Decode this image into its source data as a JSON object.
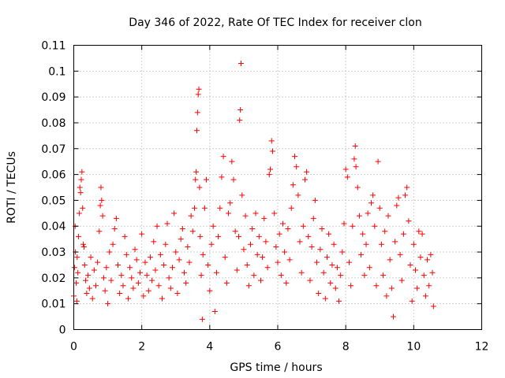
{
  "chart_data": {
    "type": "scatter",
    "title": "Day 346 of 2022, Rate Of TEC Index for receiver clon",
    "xlabel": "GPS time / hours",
    "ylabel": "ROTI / TECUs",
    "xlim": [
      0,
      12
    ],
    "ylim": [
      0,
      0.11
    ],
    "xticks": [
      "0",
      "2",
      "4",
      "6",
      "8",
      "10",
      "12"
    ],
    "xtick_values": [
      0,
      2,
      4,
      6,
      8,
      10,
      12
    ],
    "yticks": [
      "0",
      "0.01",
      "0.02",
      "0.03",
      "0.04",
      "0.05",
      "0.06",
      "0.07",
      "0.08",
      "0.09",
      "0.1",
      "0.11"
    ],
    "ytick_values": [
      0,
      0.01,
      0.02,
      0.03,
      0.04,
      0.05,
      0.06,
      0.07,
      0.08,
      0.09,
      0.1,
      0.11
    ],
    "grid": true,
    "marker": "plus",
    "color": "#ff0000",
    "series": [
      {
        "points": [
          [
            0.0,
            0.013
          ],
          [
            0.02,
            0.024
          ],
          [
            0.04,
            0.04
          ],
          [
            0.05,
            0.03
          ],
          [
            0.07,
            0.018
          ],
          [
            0.09,
            0.011
          ],
          [
            0.1,
            0.028
          ],
          [
            0.12,
            0.022
          ],
          [
            0.14,
            0.036
          ],
          [
            0.16,
            0.045
          ],
          [
            0.18,
            0.055
          ],
          [
            0.2,
            0.053
          ],
          [
            0.22,
            0.058
          ],
          [
            0.24,
            0.061
          ],
          [
            0.26,
            0.047
          ],
          [
            0.28,
            0.033
          ],
          [
            0.3,
            0.032
          ],
          [
            0.32,
            0.025
          ],
          [
            0.35,
            0.019
          ],
          [
            0.38,
            0.014
          ],
          [
            0.42,
            0.021
          ],
          [
            0.46,
            0.016
          ],
          [
            0.5,
            0.028
          ],
          [
            0.55,
            0.012
          ],
          [
            0.6,
            0.023
          ],
          [
            0.65,
            0.017
          ],
          [
            0.7,
            0.026
          ],
          [
            0.75,
            0.038
          ],
          [
            0.78,
            0.048
          ],
          [
            0.8,
            0.055
          ],
          [
            0.82,
            0.05
          ],
          [
            0.85,
            0.044
          ],
          [
            0.88,
            0.02
          ],
          [
            0.92,
            0.015
          ],
          [
            0.96,
            0.024
          ],
          [
            1.0,
            0.01
          ],
          [
            1.05,
            0.03
          ],
          [
            1.1,
            0.019
          ],
          [
            1.15,
            0.033
          ],
          [
            1.2,
            0.039
          ],
          [
            1.25,
            0.043
          ],
          [
            1.3,
            0.025
          ],
          [
            1.35,
            0.014
          ],
          [
            1.4,
            0.021
          ],
          [
            1.45,
            0.017
          ],
          [
            1.5,
            0.036
          ],
          [
            1.55,
            0.029
          ],
          [
            1.6,
            0.012
          ],
          [
            1.65,
            0.024
          ],
          [
            1.7,
            0.02
          ],
          [
            1.75,
            0.016
          ],
          [
            1.8,
            0.031
          ],
          [
            1.85,
            0.027
          ],
          [
            1.9,
            0.018
          ],
          [
            1.95,
            0.022
          ],
          [
            2.0,
            0.037
          ],
          [
            2.05,
            0.013
          ],
          [
            2.1,
            0.026
          ],
          [
            2.15,
            0.021
          ],
          [
            2.2,
            0.015
          ],
          [
            2.25,
            0.028
          ],
          [
            2.3,
            0.019
          ],
          [
            2.35,
            0.034
          ],
          [
            2.4,
            0.023
          ],
          [
            2.45,
            0.04
          ],
          [
            2.5,
            0.017
          ],
          [
            2.55,
            0.029
          ],
          [
            2.6,
            0.012
          ],
          [
            2.65,
            0.025
          ],
          [
            2.7,
            0.033
          ],
          [
            2.75,
            0.041
          ],
          [
            2.8,
            0.02
          ],
          [
            2.85,
            0.016
          ],
          [
            2.9,
            0.024
          ],
          [
            2.95,
            0.045
          ],
          [
            3.0,
            0.03
          ],
          [
            3.05,
            0.014
          ],
          [
            3.1,
            0.027
          ],
          [
            3.15,
            0.035
          ],
          [
            3.2,
            0.039
          ],
          [
            3.25,
            0.022
          ],
          [
            3.3,
            0.018
          ],
          [
            3.35,
            0.032
          ],
          [
            3.4,
            0.026
          ],
          [
            3.45,
            0.044
          ],
          [
            3.5,
            0.038
          ],
          [
            3.55,
            0.047
          ],
          [
            3.58,
            0.058
          ],
          [
            3.6,
            0.061
          ],
          [
            3.62,
            0.077
          ],
          [
            3.64,
            0.084
          ],
          [
            3.66,
            0.091
          ],
          [
            3.68,
            0.093
          ],
          [
            3.7,
            0.055
          ],
          [
            3.72,
            0.036
          ],
          [
            3.75,
            0.021
          ],
          [
            3.78,
            0.004
          ],
          [
            3.8,
            0.029
          ],
          [
            3.85,
            0.047
          ],
          [
            3.9,
            0.058
          ],
          [
            3.95,
            0.025
          ],
          [
            4.0,
            0.015
          ],
          [
            4.05,
            0.033
          ],
          [
            4.1,
            0.04
          ],
          [
            4.15,
            0.007
          ],
          [
            4.2,
            0.022
          ],
          [
            4.25,
            0.036
          ],
          [
            4.3,
            0.047
          ],
          [
            4.35,
            0.059
          ],
          [
            4.4,
            0.067
          ],
          [
            4.45,
            0.028
          ],
          [
            4.5,
            0.018
          ],
          [
            4.55,
            0.045
          ],
          [
            4.6,
            0.049
          ],
          [
            4.65,
            0.065
          ],
          [
            4.7,
            0.058
          ],
          [
            4.75,
            0.038
          ],
          [
            4.8,
            0.023
          ],
          [
            4.85,
            0.036
          ],
          [
            4.88,
            0.081
          ],
          [
            4.9,
            0.085
          ],
          [
            4.92,
            0.103
          ],
          [
            4.95,
            0.052
          ],
          [
            5.0,
            0.031
          ],
          [
            5.05,
            0.044
          ],
          [
            5.1,
            0.025
          ],
          [
            5.15,
            0.017
          ],
          [
            5.2,
            0.033
          ],
          [
            5.25,
            0.039
          ],
          [
            5.3,
            0.021
          ],
          [
            5.35,
            0.045
          ],
          [
            5.4,
            0.029
          ],
          [
            5.45,
            0.036
          ],
          [
            5.5,
            0.019
          ],
          [
            5.55,
            0.028
          ],
          [
            5.6,
            0.043
          ],
          [
            5.65,
            0.034
          ],
          [
            5.7,
            0.024
          ],
          [
            5.75,
            0.06
          ],
          [
            5.78,
            0.062
          ],
          [
            5.82,
            0.073
          ],
          [
            5.85,
            0.069
          ],
          [
            5.9,
            0.045
          ],
          [
            5.95,
            0.032
          ],
          [
            6.0,
            0.026
          ],
          [
            6.05,
            0.037
          ],
          [
            6.1,
            0.021
          ],
          [
            6.15,
            0.041
          ],
          [
            6.2,
            0.03
          ],
          [
            6.25,
            0.018
          ],
          [
            6.3,
            0.039
          ],
          [
            6.35,
            0.027
          ],
          [
            6.4,
            0.047
          ],
          [
            6.45,
            0.056
          ],
          [
            6.5,
            0.067
          ],
          [
            6.55,
            0.063
          ],
          [
            6.6,
            0.052
          ],
          [
            6.65,
            0.034
          ],
          [
            6.7,
            0.022
          ],
          [
            6.75,
            0.04
          ],
          [
            6.8,
            0.058
          ],
          [
            6.85,
            0.061
          ],
          [
            6.9,
            0.036
          ],
          [
            6.95,
            0.019
          ],
          [
            7.0,
            0.032
          ],
          [
            7.05,
            0.043
          ],
          [
            7.1,
            0.05
          ],
          [
            7.15,
            0.026
          ],
          [
            7.2,
            0.014
          ],
          [
            7.25,
            0.031
          ],
          [
            7.3,
            0.039
          ],
          [
            7.35,
            0.022
          ],
          [
            7.4,
            0.012
          ],
          [
            7.45,
            0.028
          ],
          [
            7.5,
            0.037
          ],
          [
            7.55,
            0.018
          ],
          [
            7.6,
            0.025
          ],
          [
            7.65,
            0.033
          ],
          [
            7.7,
            0.016
          ],
          [
            7.75,
            0.024
          ],
          [
            7.8,
            0.011
          ],
          [
            7.85,
            0.021
          ],
          [
            7.9,
            0.03
          ],
          [
            7.95,
            0.041
          ],
          [
            8.0,
            0.062
          ],
          [
            8.05,
            0.059
          ],
          [
            8.1,
            0.026
          ],
          [
            8.15,
            0.017
          ],
          [
            8.2,
            0.04
          ],
          [
            8.25,
            0.066
          ],
          [
            8.28,
            0.071
          ],
          [
            8.3,
            0.063
          ],
          [
            8.35,
            0.055
          ],
          [
            8.4,
            0.044
          ],
          [
            8.45,
            0.029
          ],
          [
            8.5,
            0.037
          ],
          [
            8.55,
            0.021
          ],
          [
            8.6,
            0.033
          ],
          [
            8.65,
            0.045
          ],
          [
            8.7,
            0.024
          ],
          [
            8.75,
            0.049
          ],
          [
            8.8,
            0.052
          ],
          [
            8.85,
            0.04
          ],
          [
            8.9,
            0.017
          ],
          [
            8.95,
            0.065
          ],
          [
            9.0,
            0.047
          ],
          [
            9.05,
            0.033
          ],
          [
            9.1,
            0.021
          ],
          [
            9.15,
            0.038
          ],
          [
            9.2,
            0.013
          ],
          [
            9.25,
            0.044
          ],
          [
            9.3,
            0.027
          ],
          [
            9.35,
            0.016
          ],
          [
            9.4,
            0.005
          ],
          [
            9.45,
            0.034
          ],
          [
            9.5,
            0.048
          ],
          [
            9.55,
            0.051
          ],
          [
            9.6,
            0.029
          ],
          [
            9.65,
            0.019
          ],
          [
            9.7,
            0.037
          ],
          [
            9.75,
            0.052
          ],
          [
            9.8,
            0.055
          ],
          [
            9.85,
            0.042
          ],
          [
            9.9,
            0.025
          ],
          [
            9.95,
            0.011
          ],
          [
            10.0,
            0.033
          ],
          [
            10.05,
            0.023
          ],
          [
            10.1,
            0.016
          ],
          [
            10.15,
            0.038
          ],
          [
            10.2,
            0.028
          ],
          [
            10.25,
            0.037
          ],
          [
            10.3,
            0.021
          ],
          [
            10.35,
            0.013
          ],
          [
            10.4,
            0.027
          ],
          [
            10.45,
            0.017
          ],
          [
            10.5,
            0.029
          ],
          [
            10.55,
            0.022
          ],
          [
            10.58,
            0.009
          ]
        ]
      }
    ]
  }
}
